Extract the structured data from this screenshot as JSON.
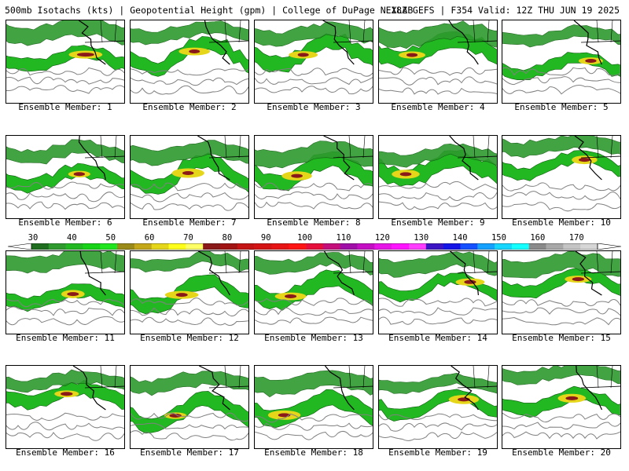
{
  "header": {
    "left_text": "500mb Isotachs (kts) | Geopotential Height (gpm) | College of DuPage NEXLAB",
    "right_text": "18Z GEFS | F354 Valid: 12Z THU JUN 19 2025"
  },
  "members": [
    {
      "label": "Ensemble Member: 1"
    },
    {
      "label": "Ensemble Member: 2"
    },
    {
      "label": "Ensemble Member: 3"
    },
    {
      "label": "Ensemble Member: 4"
    },
    {
      "label": "Ensemble Member: 5"
    },
    {
      "label": "Ensemble Member: 6"
    },
    {
      "label": "Ensemble Member: 7"
    },
    {
      "label": "Ensemble Member: 8"
    },
    {
      "label": "Ensemble Member: 9"
    },
    {
      "label": "Ensemble Member: 10"
    },
    {
      "label": "Ensemble Member: 11"
    },
    {
      "label": "Ensemble Member: 12"
    },
    {
      "label": "Ensemble Member: 13"
    },
    {
      "label": "Ensemble Member: 14"
    },
    {
      "label": "Ensemble Member: 15"
    },
    {
      "label": "Ensemble Member: 16"
    },
    {
      "label": "Ensemble Member: 17"
    },
    {
      "label": "Ensemble Member: 18"
    },
    {
      "label": "Ensemble Member: 19"
    },
    {
      "label": "Ensemble Member: 20"
    }
  ],
  "colorbar": {
    "unit": "kts",
    "labels": [
      "30",
      "40",
      "50",
      "60",
      "70",
      "80",
      "90",
      "100",
      "110",
      "120",
      "130",
      "140",
      "150",
      "160",
      "170"
    ],
    "colors": [
      "#1f6e1f",
      "#2e9a2e",
      "#22b822",
      "#17d317",
      "#1fe61f",
      "#9a8a1a",
      "#c4a81a",
      "#e6d61a",
      "#ffff1a",
      "#ffff66",
      "#8a1a1a",
      "#a01414",
      "#c41414",
      "#d41414",
      "#e61414",
      "#ff1414",
      "#e60e3a",
      "#c40e7a",
      "#a00ea8",
      "#c40ec4",
      "#e614e6",
      "#ff14ff",
      "#ff3cff",
      "#3c14c4",
      "#1414e6",
      "#1450ff",
      "#14a0ff",
      "#14d6ff",
      "#14ffff",
      "#8a8a8a",
      "#a8a8a8",
      "#c4c4c4",
      "#d6d6d6"
    ]
  }
}
